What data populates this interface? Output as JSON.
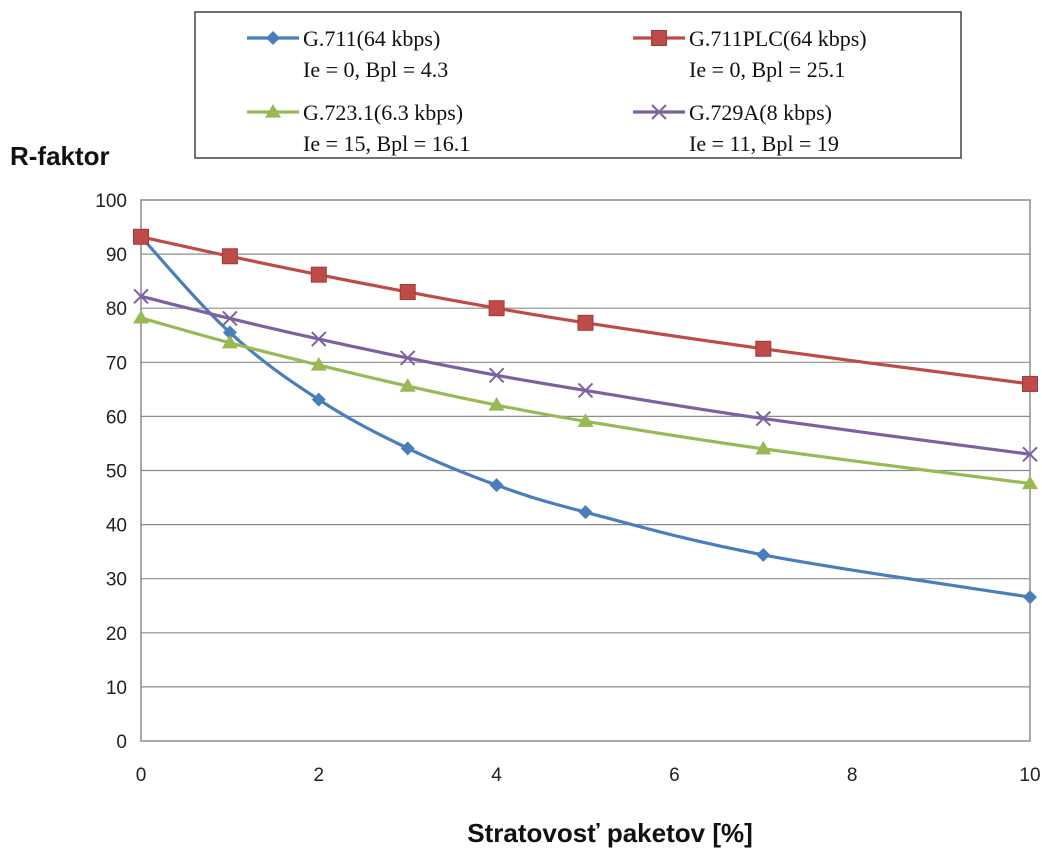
{
  "chart_data": {
    "type": "line",
    "xlabel": "Stratovosť paketov [%]",
    "ylabel": "R-faktor",
    "xlim": [
      0,
      10
    ],
    "ylim": [
      0,
      100
    ],
    "xticks": [
      0,
      2,
      4,
      6,
      8,
      10
    ],
    "yticks": [
      0,
      10,
      20,
      30,
      40,
      50,
      60,
      70,
      80,
      90,
      100
    ],
    "grid": "horizontal",
    "legend_position": "top",
    "series": [
      {
        "name": "G.711(64 kbps)",
        "params": "Ie = 0, Bpl = 4.3",
        "color": "#4a7ebb",
        "marker": "diamond",
        "x": [
          0,
          1,
          2,
          3,
          4,
          5,
          7,
          10
        ],
        "y": [
          93.2,
          75.5,
          63.1,
          54.1,
          47.3,
          42.3,
          34.4,
          26.6
        ]
      },
      {
        "name": "G.711PLC(64 kbps)",
        "params": "Ie = 0, Bpl = 25.1",
        "color": "#be4b48",
        "marker": "square",
        "x": [
          0,
          1,
          2,
          3,
          4,
          5,
          7,
          10
        ],
        "y": [
          93.2,
          89.6,
          86.2,
          83.0,
          80.0,
          77.3,
          72.5,
          66.0
        ]
      },
      {
        "name": "G.723.1(6.3 kbps)",
        "params": "Ie = 15, Bpl = 16.1",
        "color": "#98b954",
        "marker": "triangle",
        "x": [
          0,
          1,
          2,
          3,
          4,
          5,
          7,
          10
        ],
        "y": [
          78.2,
          73.6,
          69.5,
          65.6,
          62.1,
          59.1,
          54.0,
          47.6
        ]
      },
      {
        "name": "G.729A(8 kbps)",
        "params": "Ie = 11, Bpl = 19",
        "color": "#7d60a0",
        "marker": "x",
        "x": [
          0,
          1,
          2,
          3,
          4,
          5,
          7,
          10
        ],
        "y": [
          82.2,
          78.1,
          74.3,
          70.8,
          67.6,
          64.8,
          59.6,
          53.0
        ]
      }
    ]
  }
}
